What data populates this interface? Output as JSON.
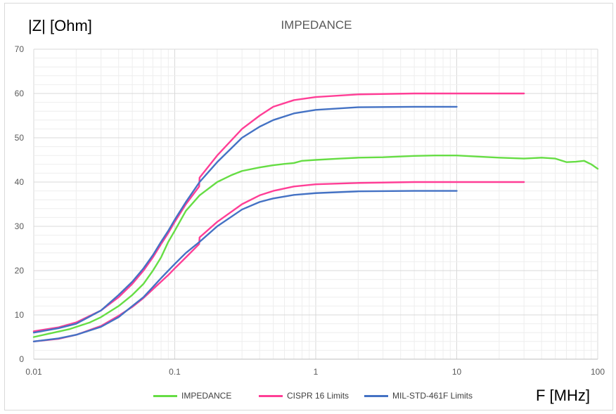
{
  "chart_data": {
    "type": "line",
    "title": "IMPEDANCE",
    "ylabel": "|Z| [Ohm]",
    "xlabel": "F [MHz]",
    "xscale": "log",
    "xlim": [
      0.01,
      100
    ],
    "ylim": [
      0,
      70
    ],
    "xticks": [
      "0.01",
      "0.1",
      "1",
      "10",
      "100"
    ],
    "yticks": [
      "0",
      "10",
      "20",
      "30",
      "40",
      "50",
      "60",
      "70"
    ],
    "grid": true,
    "legend_position": "bottom",
    "series": [
      {
        "name": "IMPEDANCE",
        "color": "#66dd44",
        "points": [
          [
            0.01,
            5.0
          ],
          [
            0.013,
            5.8
          ],
          [
            0.018,
            6.8
          ],
          [
            0.025,
            8.3
          ],
          [
            0.03,
            9.5
          ],
          [
            0.04,
            12.0
          ],
          [
            0.05,
            14.5
          ],
          [
            0.06,
            17.0
          ],
          [
            0.07,
            20.0
          ],
          [
            0.08,
            23.0
          ],
          [
            0.09,
            26.5
          ],
          [
            0.1,
            29.0
          ],
          [
            0.12,
            33.5
          ],
          [
            0.15,
            37.0
          ],
          [
            0.2,
            40.0
          ],
          [
            0.25,
            41.5
          ],
          [
            0.3,
            42.5
          ],
          [
            0.4,
            43.3
          ],
          [
            0.5,
            43.8
          ],
          [
            0.6,
            44.1
          ],
          [
            0.7,
            44.3
          ],
          [
            0.8,
            44.8
          ],
          [
            1,
            45.0
          ],
          [
            1.5,
            45.3
          ],
          [
            2,
            45.5
          ],
          [
            3,
            45.6
          ],
          [
            5,
            45.9
          ],
          [
            7,
            46.0
          ],
          [
            10,
            46.0
          ],
          [
            15,
            45.7
          ],
          [
            20,
            45.5
          ],
          [
            30,
            45.3
          ],
          [
            40,
            45.5
          ],
          [
            50,
            45.3
          ],
          [
            60,
            44.5
          ],
          [
            70,
            44.6
          ],
          [
            80,
            44.8
          ],
          [
            90,
            44.0
          ],
          [
            100,
            43.0
          ]
        ]
      },
      {
        "name": "CISPR 16 Limits",
        "color": "#ff3e96",
        "points": [
          [
            0.01,
            6.3
          ],
          [
            0.015,
            7.2
          ],
          [
            0.02,
            8.3
          ],
          [
            0.03,
            11.0
          ],
          [
            0.04,
            14.0
          ],
          [
            0.05,
            17.0
          ],
          [
            0.06,
            20.0
          ],
          [
            0.07,
            23.0
          ],
          [
            0.08,
            26.0
          ],
          [
            0.09,
            28.5
          ],
          [
            0.1,
            31.0
          ],
          [
            0.12,
            35.0
          ],
          [
            0.149,
            39.0
          ],
          [
            0.15,
            41.0
          ],
          [
            0.2,
            46.0
          ],
          [
            0.3,
            52.0
          ],
          [
            0.4,
            55.0
          ],
          [
            0.5,
            57.0
          ],
          [
            0.7,
            58.5
          ],
          [
            1,
            59.2
          ],
          [
            2,
            59.8
          ],
          [
            5,
            60.0
          ],
          [
            10,
            60.0
          ],
          [
            30,
            60.0
          ]
        ]
      },
      {
        "name": "CISPR 16 Limits",
        "color": "#ff3e96",
        "points": [
          [
            0.01,
            4.0
          ],
          [
            0.015,
            4.6
          ],
          [
            0.02,
            5.5
          ],
          [
            0.03,
            7.5
          ],
          [
            0.04,
            9.8
          ],
          [
            0.05,
            11.8
          ],
          [
            0.06,
            13.8
          ],
          [
            0.07,
            15.8
          ],
          [
            0.08,
            17.5
          ],
          [
            0.09,
            19.0
          ],
          [
            0.1,
            20.5
          ],
          [
            0.12,
            23.0
          ],
          [
            0.149,
            26.0
          ],
          [
            0.15,
            27.5
          ],
          [
            0.2,
            31.0
          ],
          [
            0.3,
            35.0
          ],
          [
            0.4,
            37.0
          ],
          [
            0.5,
            38.0
          ],
          [
            0.7,
            39.0
          ],
          [
            1,
            39.5
          ],
          [
            2,
            39.8
          ],
          [
            5,
            40.0
          ],
          [
            10,
            40.0
          ],
          [
            30,
            40.0
          ]
        ]
      },
      {
        "name": "MIL-STD-461F Limits",
        "color": "#4472c4",
        "points": [
          [
            0.01,
            6.0
          ],
          [
            0.015,
            7.0
          ],
          [
            0.02,
            8.0
          ],
          [
            0.03,
            11.0
          ],
          [
            0.04,
            14.5
          ],
          [
            0.05,
            17.5
          ],
          [
            0.06,
            20.5
          ],
          [
            0.07,
            23.5
          ],
          [
            0.08,
            26.5
          ],
          [
            0.09,
            29.0
          ],
          [
            0.1,
            31.5
          ],
          [
            0.12,
            35.5
          ],
          [
            0.15,
            40.0
          ],
          [
            0.2,
            44.5
          ],
          [
            0.3,
            50.0
          ],
          [
            0.4,
            52.5
          ],
          [
            0.5,
            54.0
          ],
          [
            0.7,
            55.5
          ],
          [
            1,
            56.3
          ],
          [
            2,
            56.9
          ],
          [
            5,
            57.0
          ],
          [
            10,
            57.0
          ]
        ]
      },
      {
        "name": "MIL-STD-461F Limits",
        "color": "#4472c4",
        "points": [
          [
            0.01,
            4.0
          ],
          [
            0.015,
            4.7
          ],
          [
            0.02,
            5.5
          ],
          [
            0.03,
            7.3
          ],
          [
            0.04,
            9.5
          ],
          [
            0.05,
            12.0
          ],
          [
            0.06,
            14.0
          ],
          [
            0.07,
            16.3
          ],
          [
            0.08,
            18.3
          ],
          [
            0.09,
            20.0
          ],
          [
            0.1,
            21.5
          ],
          [
            0.12,
            24.0
          ],
          [
            0.15,
            26.5
          ],
          [
            0.2,
            30.0
          ],
          [
            0.3,
            33.8
          ],
          [
            0.4,
            35.5
          ],
          [
            0.5,
            36.3
          ],
          [
            0.7,
            37.1
          ],
          [
            1,
            37.5
          ],
          [
            2,
            37.9
          ],
          [
            5,
            38.0
          ],
          [
            10,
            38.0
          ]
        ]
      }
    ],
    "legend": [
      {
        "label": "IMPEDANCE",
        "color": "#66dd44"
      },
      {
        "label": "CISPR 16 Limits",
        "color": "#ff3e96"
      },
      {
        "label": "MIL-STD-461F Limits",
        "color": "#4472c4"
      }
    ]
  }
}
